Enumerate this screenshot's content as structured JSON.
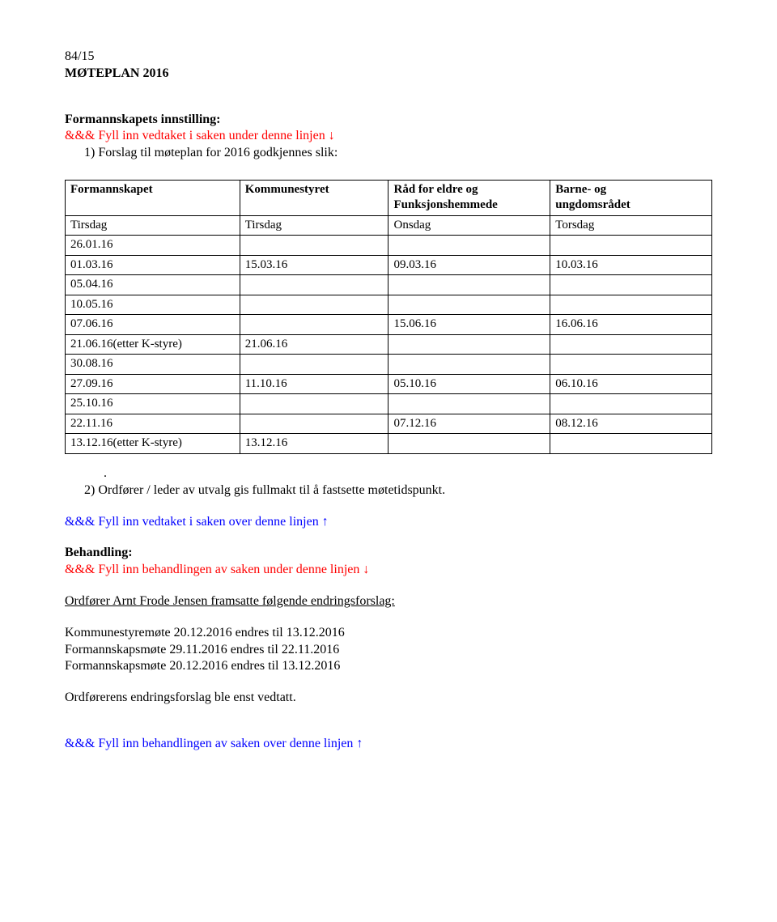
{
  "header": {
    "caseNumber": "84/15",
    "title": "MØTEPLAN 2016"
  },
  "proposal": {
    "heading": "Formannskapets innstilling:",
    "fillBelow": "&&& Fyll inn vedtaket i saken under  denne linjen ",
    "arrowDown": "↓",
    "item1": "1)  Forslag til møteplan for 2016 godkjennes slik:"
  },
  "table": {
    "headers": {
      "c1": "Formannskapet",
      "c2": "Kommunestyret",
      "c3a": "Råd for eldre og",
      "c3b": "Funksjonshemmede",
      "c4a": "Barne- og",
      "c4b": "ungdomsrådet"
    },
    "dayRow": {
      "c1": "Tirsdag",
      "c2": "Tirsdag",
      "c3": "Onsdag",
      "c4": "Torsdag"
    },
    "rows": [
      {
        "c1": "26.01.16",
        "c2": "",
        "c3": "",
        "c4": ""
      },
      {
        "c1": "01.03.16",
        "c2": "15.03.16",
        "c3": "09.03.16",
        "c4": "10.03.16"
      },
      {
        "c1": "05.04.16",
        "c2": "",
        "c3": "",
        "c4": ""
      },
      {
        "c1": "10.05.16",
        "c2": "",
        "c3": "",
        "c4": ""
      },
      {
        "c1": "07.06.16",
        "c2": "",
        "c3": "15.06.16",
        "c4": "16.06.16"
      },
      {
        "c1": "21.06.16(etter K-styre)",
        "c2": "21.06.16",
        "c3": "",
        "c4": ""
      },
      {
        "c1": "30.08.16",
        "c2": "",
        "c3": "",
        "c4": ""
      },
      {
        "c1": "27.09.16",
        "c2": "11.10.16",
        "c3": "05.10.16",
        "c4": "06.10.16"
      },
      {
        "c1": "25.10.16",
        "c2": "",
        "c3": "",
        "c4": ""
      },
      {
        "c1": "22.11.16",
        "c2": "",
        "c3": "07.12.16",
        "c4": "08.12.16"
      },
      {
        "c1": "13.12.16(etter K-styre)",
        "c2": "13.12.16",
        "c3": "",
        "c4": ""
      }
    ]
  },
  "afterTable": {
    "dot": ".",
    "item2": "2)  Ordfører / leder av utvalg gis fullmakt til å fastsette møtetidspunkt.",
    "fillAbove": "&&& Fyll inn vedtaket i saken over denne linjen ",
    "arrowUp": "↑"
  },
  "behandling": {
    "heading": "Behandling:",
    "fillBelow": "&&& Fyll inn behandlingen av saken under denne linjen ",
    "arrowDown": "↓",
    "lead": "Ordfører Arnt Frode Jensen framsatte følgende endringsforslag:",
    "line1": "Kommunestyremøte 20.12.2016 endres til 13.12.2016",
    "line2": "Formannskapsmøte  29.11.2016 endres til 22.11.2016",
    "line3": "Formannskapsmøte 20.12.2016 endres til 13.12.2016",
    "result": "Ordførerens endringsforslag ble enst vedtatt.",
    "fillAbove": "&&& Fyll inn behandlingen av saken over denne linjen ",
    "arrowUp": "↑"
  }
}
